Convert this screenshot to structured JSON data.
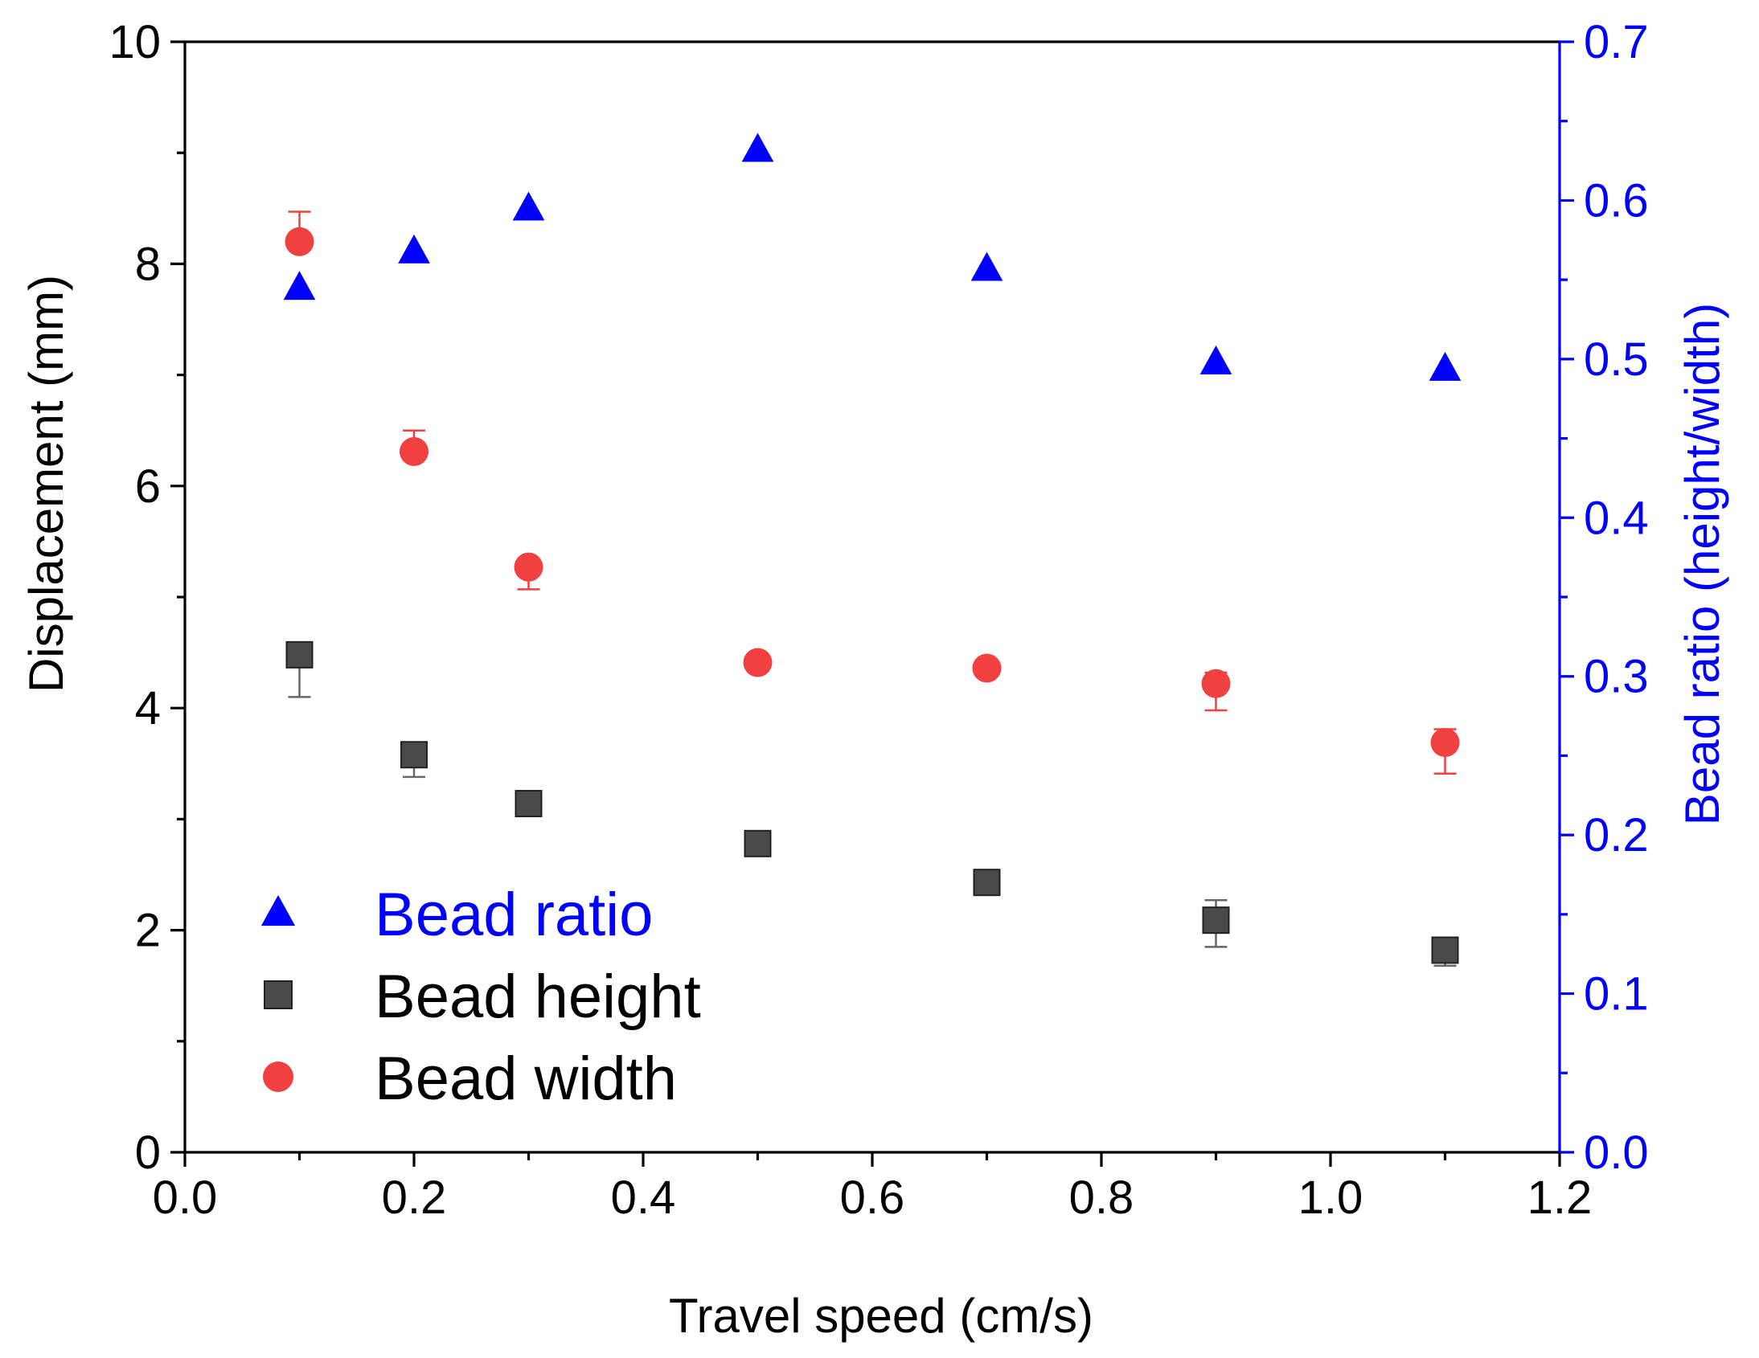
{
  "chart_data": {
    "type": "scatter",
    "title": "",
    "xlabel": "Travel speed (cm/s)",
    "ylabel": "Displacement (mm)",
    "y2label": "Bead ratio (height/width)",
    "xlim": [
      0.0,
      1.2
    ],
    "ylim": [
      0,
      10
    ],
    "y2lim": [
      0.0,
      0.7
    ],
    "x_ticks": [
      "0.0",
      "0.2",
      "0.4",
      "0.6",
      "0.8",
      "1.0",
      "1.2"
    ],
    "y_ticks": [
      "0",
      "2",
      "4",
      "6",
      "8",
      "10"
    ],
    "y2_ticks": [
      "0.0",
      "0.1",
      "0.2",
      "0.3",
      "0.4",
      "0.5",
      "0.6",
      "0.7"
    ],
    "grid": false,
    "legend_position": "bottom-left",
    "series": [
      {
        "name": "Bead ratio",
        "axis": "right",
        "marker": "triangle",
        "color": "#0000ff",
        "x": [
          0.1,
          0.2,
          0.3,
          0.5,
          0.7,
          0.9,
          1.1
        ],
        "values": [
          0.545,
          0.568,
          0.595,
          0.632,
          0.557,
          0.498,
          0.494
        ],
        "err_up": [
          0,
          0,
          0,
          0,
          0,
          0,
          0
        ],
        "err_down": [
          0,
          0,
          0,
          0,
          0,
          0,
          0
        ]
      },
      {
        "name": "Bead height",
        "axis": "left",
        "marker": "square",
        "color": "#4a4a4a",
        "errcolor": "#666666",
        "x": [
          0.1,
          0.2,
          0.3,
          0.5,
          0.7,
          0.9,
          1.1
        ],
        "values": [
          4.48,
          3.58,
          3.14,
          2.78,
          2.43,
          2.09,
          1.82
        ],
        "err_up": [
          0,
          0,
          0,
          0,
          0,
          0.18,
          0
        ],
        "err_down": [
          0.38,
          0.2,
          0,
          0,
          0,
          0.24,
          0.14
        ]
      },
      {
        "name": "Bead width",
        "axis": "left",
        "marker": "circle",
        "color": "#f04040",
        "errcolor": "#f04040",
        "x": [
          0.1,
          0.2,
          0.3,
          0.5,
          0.7,
          0.9,
          1.1
        ],
        "values": [
          8.2,
          6.31,
          5.27,
          4.41,
          4.36,
          4.22,
          3.69
        ],
        "err_up": [
          0.27,
          0.19,
          0,
          0,
          0,
          0.1,
          0.12
        ],
        "err_down": [
          0,
          0,
          0.2,
          0,
          0,
          0.24,
          0.28
        ]
      }
    ]
  },
  "colors": {
    "axis_left": "#000000",
    "axis_right": "#0000ff",
    "legend_ratio_text": "#0000ff",
    "legend_text": "#000000"
  }
}
